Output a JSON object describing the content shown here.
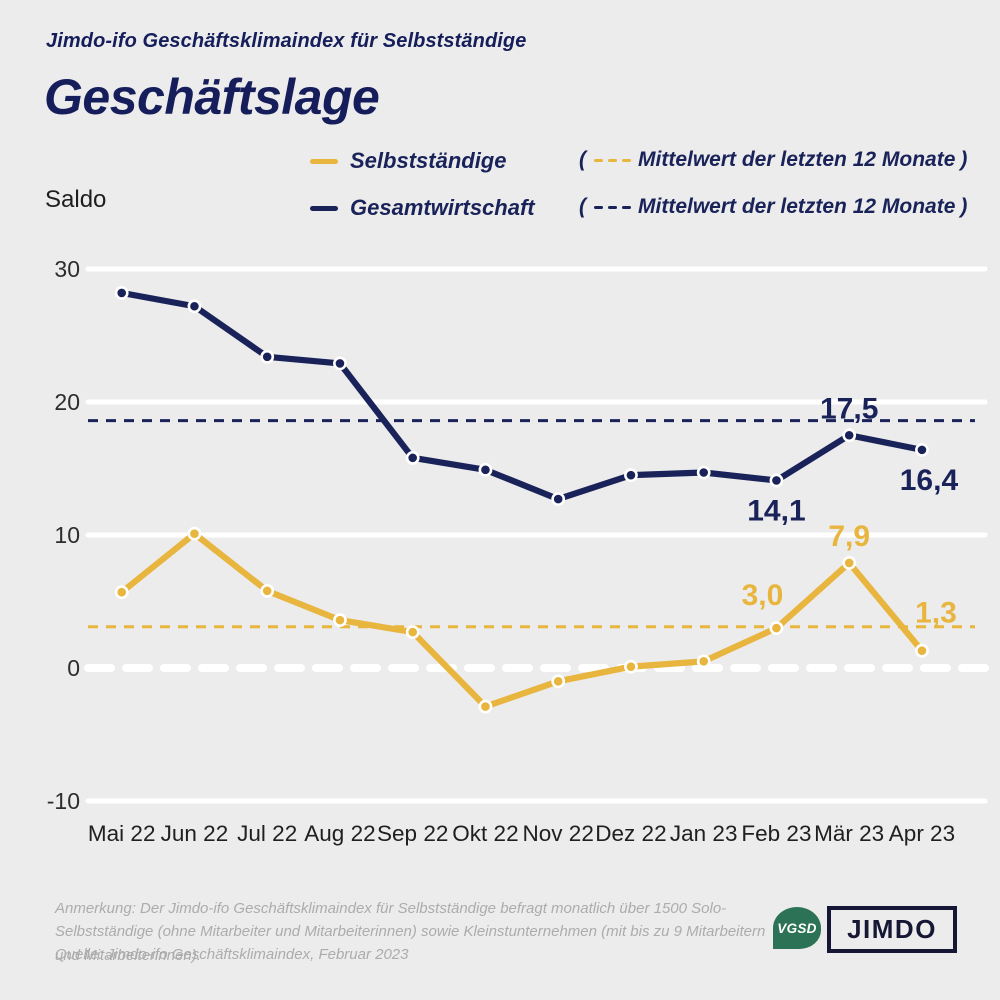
{
  "colors": {
    "background": "#ECECEC",
    "navy": "#1A2359",
    "yellow": "#E8B53E",
    "grid": "#FFFFFF",
    "axis_text": "#2D2D2D",
    "footer_text": "#ACACAC",
    "vgsd_green": "#2C7257",
    "jimdo_navy": "#161735"
  },
  "header": {
    "kicker": "Jimdo-ifo Geschäftsklimaindex für Selbstständige",
    "title": "Geschäftslage"
  },
  "axis": {
    "ylabel": "Saldo"
  },
  "legend": {
    "items": [
      {
        "label": "Selbstständige",
        "color": "#E8B53E",
        "mean_open": "(",
        "mean_label": "Mittelwert der letzten 12 Monate",
        "mean_close": ")"
      },
      {
        "label": "Gesamtwirtschaft",
        "color": "#1A2359",
        "mean_open": "(",
        "mean_label": "Mittelwert der letzten 12 Monate",
        "mean_close": ")"
      }
    ]
  },
  "chart_data": {
    "type": "line",
    "title": "Geschäftslage",
    "ylabel": "Saldo",
    "x_labels": [
      "Mai 22",
      "Jun 22",
      "Jul 22",
      "Aug 22",
      "Sep 22",
      "Okt 22",
      "Nov 22",
      "Dez 22",
      "Jan 23",
      "Feb 23",
      "Mär 23",
      "Apr 23"
    ],
    "y_ticks": [
      30,
      20,
      10,
      0,
      -10
    ],
    "ylim": [
      -13,
      32
    ],
    "grid": true,
    "legend_position": "top",
    "series": [
      {
        "name": "Gesamtwirtschaft",
        "color": "#1A2359",
        "values": [
          28.2,
          27.2,
          23.4,
          22.9,
          15.8,
          14.9,
          12.7,
          14.5,
          14.7,
          14.1,
          17.5,
          16.4
        ],
        "mean_last_12_months": 18.6,
        "labels": [
          {
            "index": 9,
            "text": "14,1",
            "placement": "below"
          },
          {
            "index": 10,
            "text": "17,5",
            "placement": "above"
          },
          {
            "index": 11,
            "text": "16,4",
            "placement": "below-right"
          }
        ]
      },
      {
        "name": "Selbstständige",
        "color": "#E8B53E",
        "values": [
          5.7,
          10.1,
          5.8,
          3.6,
          2.7,
          -2.9,
          -1.0,
          0.1,
          0.5,
          3.0,
          7.9,
          1.3
        ],
        "mean_last_12_months": 3.1,
        "labels": [
          {
            "index": 9,
            "text": "3,0",
            "placement": "above-left"
          },
          {
            "index": 10,
            "text": "7,9",
            "placement": "above"
          },
          {
            "index": 11,
            "text": "1,3",
            "placement": "right-above"
          }
        ]
      }
    ]
  },
  "footer": {
    "note": "Anmerkung: Der Jimdo-ifo Geschäftsklimaindex für Selbstständige befragt monatlich über 1500 Solo-Selbstständige (ohne Mitarbeiter und Mitarbeiterinnen) sowie Kleinstunternehmen (mit bis zu 9 Mitarbeitern und Mitarbeiterinnen).",
    "source": "Quelle: Jimdo-ifo Geschäftsklimaindex, Februar 2023",
    "logos": {
      "vgsd": "VGSD",
      "jimdo": "JIMDO"
    }
  }
}
